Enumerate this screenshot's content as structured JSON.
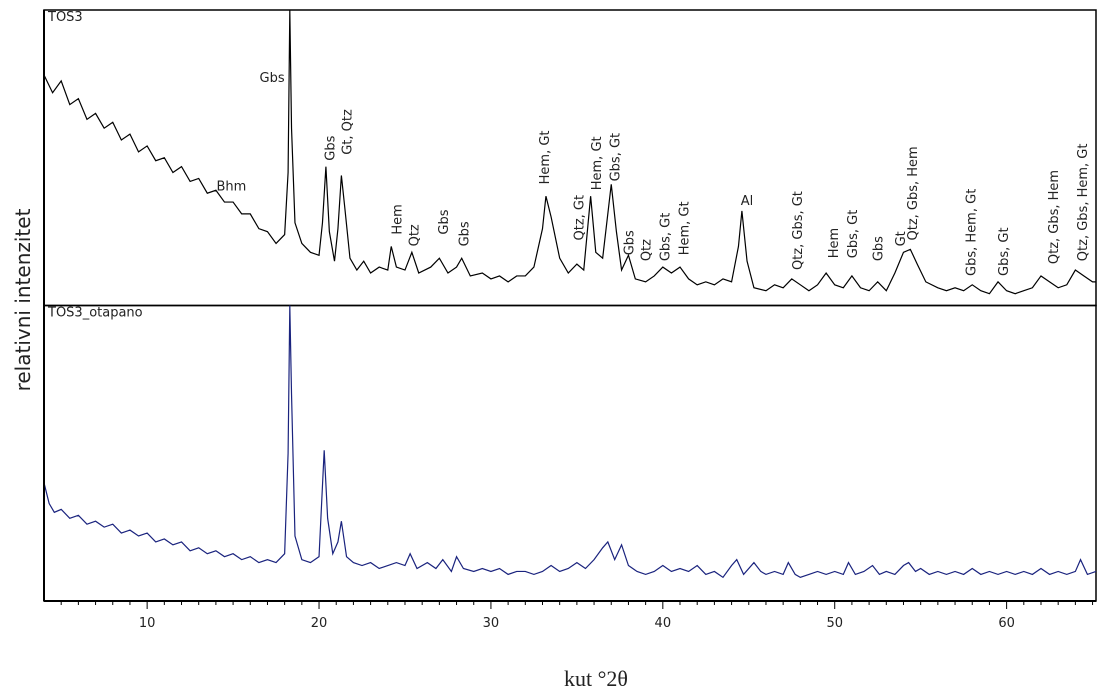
{
  "chart_data": [
    {
      "type": "line",
      "ylabel": "relativni intenzitet",
      "xlim": [
        4,
        65.2
      ],
      "ylim": [
        0,
        100
      ],
      "series": [
        {
          "name": "TOS3",
          "color": "#000000",
          "x": [
            4,
            4.5,
            5,
            5.5,
            6,
            6.5,
            7,
            7.5,
            8,
            8.5,
            9,
            9.5,
            10,
            10.5,
            11,
            11.5,
            12,
            12.5,
            13,
            13.5,
            14,
            14.5,
            15,
            15.5,
            16,
            16.5,
            17,
            17.5,
            18,
            18.2,
            18.3,
            18.4,
            18.6,
            19,
            19.5,
            20,
            20.2,
            20.4,
            20.6,
            20.9,
            21.1,
            21.3,
            21.5,
            21.8,
            22.2,
            22.6,
            23,
            23.5,
            24,
            24.2,
            24.5,
            25,
            25.4,
            25.8,
            26.5,
            27,
            27.5,
            28,
            28.3,
            28.8,
            29.5,
            30,
            30.5,
            31,
            31.5,
            32,
            32.5,
            33,
            33.2,
            33.5,
            34,
            34.5,
            35,
            35.4,
            35.8,
            36.1,
            36.5,
            37,
            37.3,
            37.6,
            38,
            38.4,
            39,
            39.5,
            40,
            40.5,
            41,
            41.5,
            42,
            42.5,
            43,
            43.5,
            44,
            44.4,
            44.6,
            44.9,
            45.3,
            46,
            46.5,
            47,
            47.5,
            48,
            48.5,
            49,
            49.5,
            50,
            50.5,
            51,
            51.5,
            52,
            52.5,
            53,
            53.5,
            54,
            54.4,
            54.8,
            55.3,
            56,
            56.5,
            57,
            57.5,
            58,
            58.5,
            59,
            59.5,
            60,
            60.5,
            61,
            61.5,
            62,
            62.5,
            63,
            63.5,
            64,
            64.5,
            65,
            65.2
          ],
          "values": [
            78,
            72,
            76,
            68,
            70,
            63,
            65,
            60,
            62,
            56,
            58,
            52,
            54,
            49,
            50,
            45,
            47,
            42,
            43,
            38,
            39,
            35,
            35,
            31,
            31,
            26,
            25,
            21,
            24,
            45,
            100,
            60,
            28,
            21,
            18,
            17,
            28,
            47,
            25,
            15,
            26,
            44,
            33,
            16,
            12,
            15,
            11,
            13,
            12,
            20,
            13,
            12,
            18,
            11,
            13,
            16,
            11,
            13,
            16,
            10,
            11,
            9,
            10,
            8,
            10,
            10,
            13,
            26,
            37,
            30,
            16,
            11,
            14,
            12,
            37,
            18,
            16,
            41,
            25,
            12,
            17,
            9,
            8,
            10,
            13,
            11,
            13,
            9,
            7,
            8,
            7,
            9,
            8,
            20,
            32,
            15,
            6,
            5,
            7,
            6,
            9,
            7,
            5,
            7,
            11,
            7,
            6,
            10,
            6,
            5,
            8,
            5,
            11,
            18,
            19,
            14,
            8,
            6,
            5,
            6,
            5,
            7,
            5,
            4,
            8,
            5,
            4,
            5,
            6,
            10,
            8,
            6,
            7,
            12,
            10,
            8,
            8
          ]
        }
      ],
      "annotations": [
        {
          "text": "Gbs",
          "x": 17.27,
          "y": 75.6,
          "vertical": false
        },
        {
          "text": "Bhm",
          "x": 14.9,
          "y": 39,
          "vertical": false
        },
        {
          "text": "Gbs",
          "x": 20.6,
          "y": 49,
          "vertical": true
        },
        {
          "text": "Gt, Qtz",
          "x": 21.6,
          "y": 51,
          "vertical": true
        },
        {
          "text": "Hem",
          "x": 24.5,
          "y": 24,
          "vertical": true
        },
        {
          "text": "Qtz",
          "x": 25.5,
          "y": 20,
          "vertical": true
        },
        {
          "text": "Gbs",
          "x": 27.2,
          "y": 24,
          "vertical": true
        },
        {
          "text": "Gbs",
          "x": 28.4,
          "y": 20,
          "vertical": true
        },
        {
          "text": "Hem, Gt",
          "x": 33.1,
          "y": 41,
          "vertical": true
        },
        {
          "text": "Qtz, Gt",
          "x": 35.1,
          "y": 22,
          "vertical": true
        },
        {
          "text": "Hem, Gt",
          "x": 36.1,
          "y": 39,
          "vertical": true
        },
        {
          "text": "Gbs, Gt",
          "x": 37.2,
          "y": 42,
          "vertical": true
        },
        {
          "text": "Gbs",
          "x": 38.0,
          "y": 17,
          "vertical": true
        },
        {
          "text": "Qtz",
          "x": 39.0,
          "y": 15,
          "vertical": true
        },
        {
          "text": "Gbs, Gt",
          "x": 40.1,
          "y": 15,
          "vertical": true
        },
        {
          "text": "Hem, Gt",
          "x": 41.2,
          "y": 17,
          "vertical": true
        },
        {
          "text": "Al",
          "x": 44.9,
          "y": 34,
          "vertical": false,
          "color": "#c0392b"
        },
        {
          "text": "Qtz, Gbs, Gt",
          "x": 47.8,
          "y": 12,
          "vertical": true
        },
        {
          "text": "Hem",
          "x": 49.9,
          "y": 16,
          "vertical": true
        },
        {
          "text": "Gbs, Gt",
          "x": 51.0,
          "y": 16,
          "vertical": true
        },
        {
          "text": "Gbs",
          "x": 52.5,
          "y": 15,
          "vertical": true
        },
        {
          "text": "Gt",
          "x": 53.8,
          "y": 20,
          "vertical": true
        },
        {
          "text": "Qtz, Gbs, Hem",
          "x": 54.5,
          "y": 22,
          "vertical": true
        },
        {
          "text": "Gbs, Hem, Gt",
          "x": 57.9,
          "y": 10,
          "vertical": true
        },
        {
          "text": "Gbs, Gt",
          "x": 59.8,
          "y": 10,
          "vertical": true
        },
        {
          "text": "Qtz, Gbs, Hem",
          "x": 62.7,
          "y": 14,
          "vertical": true
        },
        {
          "text": "Qtz, Gbs, Hem, Gt",
          "x": 64.4,
          "y": 15,
          "vertical": true
        }
      ]
    },
    {
      "type": "line",
      "xlabel": "kut °2θ",
      "xlim": [
        4,
        65.2
      ],
      "ylim": [
        0,
        100
      ],
      "xticks": [
        10,
        20,
        30,
        40,
        50,
        60
      ],
      "xminorticks": [
        5,
        6,
        7,
        8,
        9,
        11,
        12,
        13,
        14,
        15,
        16,
        17,
        18,
        19,
        21,
        22,
        23,
        24,
        25,
        26,
        27,
        28,
        29,
        31,
        32,
        33,
        34,
        35,
        36,
        37,
        38,
        39,
        41,
        42,
        43,
        44,
        45,
        46,
        47,
        48,
        49,
        51,
        52,
        53,
        54,
        55,
        56,
        57,
        58,
        59,
        61,
        62,
        63,
        64,
        65
      ],
      "series": [
        {
          "name": "TOS3_otapano",
          "color": "#1a237e",
          "x": [
            4,
            4.3,
            4.6,
            5,
            5.5,
            6,
            6.5,
            7,
            7.5,
            8,
            8.5,
            9,
            9.5,
            10,
            10.5,
            11,
            11.5,
            12,
            12.5,
            13,
            13.5,
            14,
            14.5,
            15,
            15.5,
            16,
            16.5,
            17,
            17.5,
            18,
            18.2,
            18.3,
            18.4,
            18.6,
            19,
            19.5,
            20,
            20.3,
            20.5,
            20.8,
            21.1,
            21.3,
            21.6,
            22,
            22.5,
            23,
            23.5,
            24,
            24.5,
            25,
            25.3,
            25.7,
            26.3,
            26.8,
            27.2,
            27.7,
            28,
            28.4,
            29,
            29.5,
            30,
            30.5,
            31,
            31.5,
            32,
            32.5,
            33,
            33.5,
            34,
            34.5,
            35,
            35.5,
            36,
            36.5,
            36.8,
            37.2,
            37.6,
            38,
            38.5,
            39,
            39.5,
            40,
            40.5,
            41,
            41.5,
            42,
            42.5,
            43,
            43.5,
            44,
            44.3,
            44.7,
            45.3,
            45.7,
            46,
            46.5,
            47,
            47.3,
            47.7,
            48,
            48.5,
            49,
            49.5,
            50,
            50.5,
            50.8,
            51.2,
            51.7,
            52.2,
            52.6,
            53,
            53.5,
            54,
            54.3,
            54.7,
            55,
            55.5,
            56,
            56.5,
            57,
            57.5,
            58,
            58.5,
            59,
            59.5,
            60,
            60.5,
            61,
            61.5,
            62,
            62.5,
            63,
            63.5,
            64,
            64.3,
            64.7,
            65.2
          ],
          "values": [
            40,
            33,
            30,
            31,
            28,
            29,
            26,
            27,
            25,
            26,
            23,
            24,
            22,
            23,
            20,
            21,
            19,
            20,
            17,
            18,
            16,
            17,
            15,
            16,
            14,
            15,
            13,
            14,
            13,
            16,
            50,
            100,
            70,
            22,
            14,
            13,
            15,
            51,
            28,
            16,
            20,
            27,
            15,
            13,
            12,
            13,
            11,
            12,
            13,
            12,
            16,
            11,
            13,
            11,
            14,
            10,
            15,
            11,
            10,
            11,
            10,
            11,
            9,
            10,
            10,
            9,
            10,
            12,
            10,
            11,
            13,
            11,
            14,
            18,
            20,
            14,
            19,
            12,
            10,
            9,
            10,
            12,
            10,
            11,
            10,
            12,
            9,
            10,
            8,
            12,
            14,
            9,
            13,
            10,
            9,
            10,
            9,
            13,
            9,
            8,
            9,
            10,
            9,
            10,
            9,
            13,
            9,
            10,
            12,
            9,
            10,
            9,
            12,
            13,
            10,
            11,
            9,
            10,
            9,
            10,
            9,
            11,
            9,
            10,
            9,
            10,
            9,
            10,
            9,
            11,
            9,
            10,
            9,
            10,
            14,
            9,
            10
          ]
        }
      ]
    }
  ]
}
